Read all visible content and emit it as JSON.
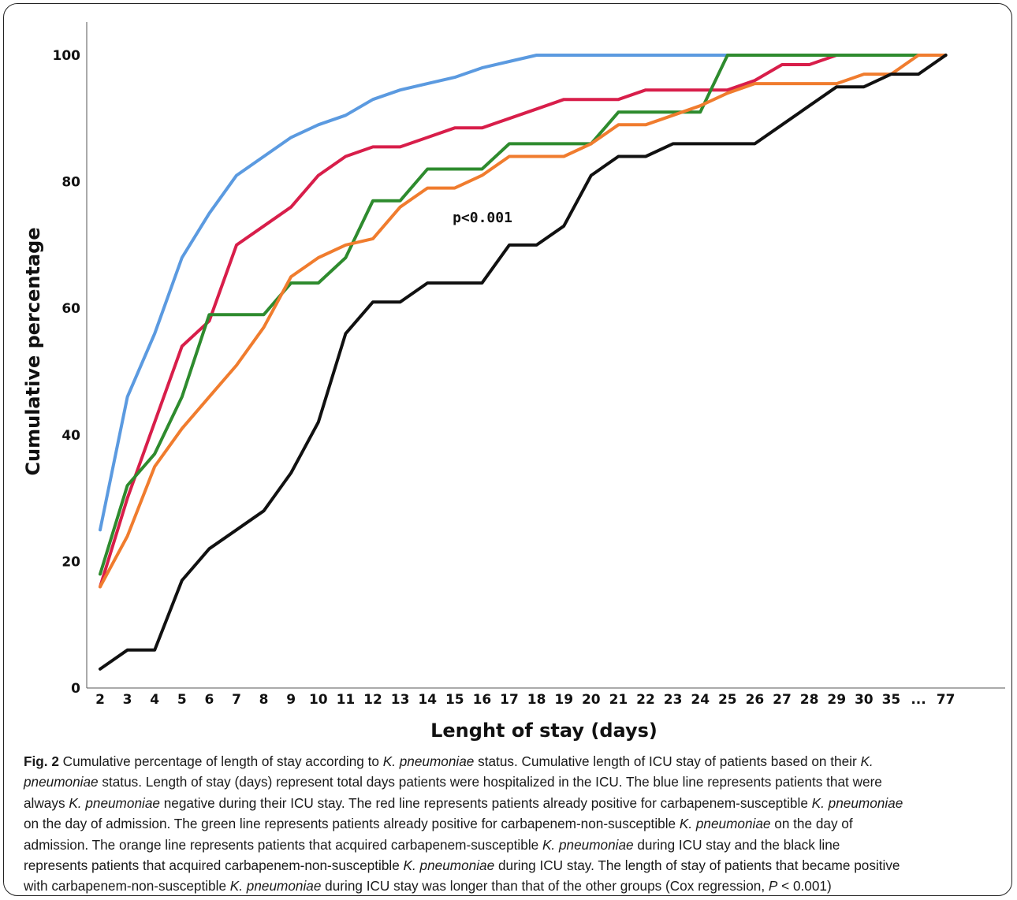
{
  "chart_data": {
    "type": "line",
    "title": "",
    "xlabel": "Lenght of stay (days)",
    "ylabel": "Cumulative percentage",
    "ylim": [
      0,
      105
    ],
    "yticks": [
      "0",
      "20",
      "40",
      "60",
      "80",
      "100"
    ],
    "ytick_values": [
      0,
      20,
      40,
      60,
      80,
      100
    ],
    "categories": [
      "2",
      "3",
      "4",
      "5",
      "6",
      "7",
      "8",
      "9",
      "10",
      "11",
      "12",
      "13",
      "14",
      "15",
      "16",
      "17",
      "18",
      "19",
      "20",
      "21",
      "22",
      "23",
      "24",
      "25",
      "26",
      "27",
      "28",
      "29",
      "30",
      "35",
      "...",
      "77"
    ],
    "annotation": "p<0.001",
    "grid": false,
    "series": [
      {
        "color": "#5b9ae0",
        "values": [
          25,
          46,
          56,
          68,
          75,
          81,
          84,
          87,
          89,
          90.5,
          93,
          94.5,
          95.5,
          96.5,
          98,
          99,
          100,
          100,
          100,
          100,
          100,
          100,
          100,
          100,
          100,
          100,
          100,
          100,
          100,
          100,
          100,
          100
        ]
      },
      {
        "color": "#d81e4a",
        "values": [
          16,
          30,
          42,
          54,
          58,
          70,
          73,
          76,
          81,
          84,
          85.5,
          85.5,
          87,
          88.5,
          88.5,
          90,
          91.5,
          93,
          93,
          93,
          94.5,
          94.5,
          94.5,
          94.5,
          96,
          98.5,
          98.5,
          100,
          100,
          100,
          100,
          100
        ]
      },
      {
        "color": "#2e8b2e",
        "values": [
          18,
          32,
          37,
          46,
          59,
          59,
          59,
          64,
          64,
          68,
          77,
          77,
          82,
          82,
          82,
          86,
          86,
          86,
          86,
          91,
          91,
          91,
          91,
          100,
          100,
          100,
          100,
          100,
          100,
          100,
          100,
          100
        ]
      },
      {
        "color": "#f07c2e",
        "values": [
          16,
          24,
          35,
          41,
          46,
          51,
          57,
          65,
          68,
          70,
          71,
          76,
          79,
          79,
          81,
          84,
          84,
          84,
          86,
          89,
          89,
          90.5,
          92,
          94,
          95.5,
          95.5,
          95.5,
          95.5,
          97,
          97,
          100,
          100
        ]
      },
      {
        "color": "#111111",
        "values": [
          3,
          6,
          6,
          17,
          22,
          25,
          28,
          34,
          42,
          56,
          61,
          61,
          64,
          64,
          64,
          70,
          70,
          73,
          81,
          84,
          84,
          86,
          86,
          86,
          86,
          89,
          92,
          95,
          95,
          97,
          97,
          100
        ]
      }
    ]
  },
  "caption": {
    "fig_label": "Fig. 2",
    "lines": [
      [
        [
          "n",
          " Cumulative percentage of length of stay according to "
        ],
        [
          "i",
          "K. pneumoniae"
        ],
        [
          "n",
          " status. Cumulative length of ICU stay of patients based on their "
        ],
        [
          "i",
          "K."
        ]
      ],
      [
        [
          "i",
          "pneumoniae"
        ],
        [
          "n",
          " status. Length of stay (days) represent total days patients were hospitalized in the ICU. The blue line represents patients that were"
        ]
      ],
      [
        [
          "n",
          "always "
        ],
        [
          "i",
          "K. pneumoniae"
        ],
        [
          "n",
          " negative during their ICU stay. The red line represents patients already positive for carbapenem-susceptible "
        ],
        [
          "i",
          "K. pneumoniae"
        ]
      ],
      [
        [
          "n",
          "on the day of admission. The green line represents patients already positive for carbapenem-non-susceptible "
        ],
        [
          "i",
          "K. pneumoniae"
        ],
        [
          "n",
          " on the day of"
        ]
      ],
      [
        [
          "n",
          "admission. The orange line represents patients that acquired carbapenem-susceptible "
        ],
        [
          "i",
          "K. pneumoniae"
        ],
        [
          "n",
          " during ICU stay and the black line"
        ]
      ],
      [
        [
          "n",
          "represents patients that acquired carbapenem-non-susceptible "
        ],
        [
          "i",
          "K. pneumoniae"
        ],
        [
          "n",
          " during ICU stay. The length of stay of patients that became positive"
        ]
      ],
      [
        [
          "n",
          "with carbapenem-non-susceptible "
        ],
        [
          "i",
          "K. pneumoniae"
        ],
        [
          "n",
          " during ICU stay was longer than that of the other groups (Cox regression, "
        ],
        [
          "i",
          "P"
        ],
        [
          "n",
          " < 0.001)"
        ]
      ]
    ]
  }
}
